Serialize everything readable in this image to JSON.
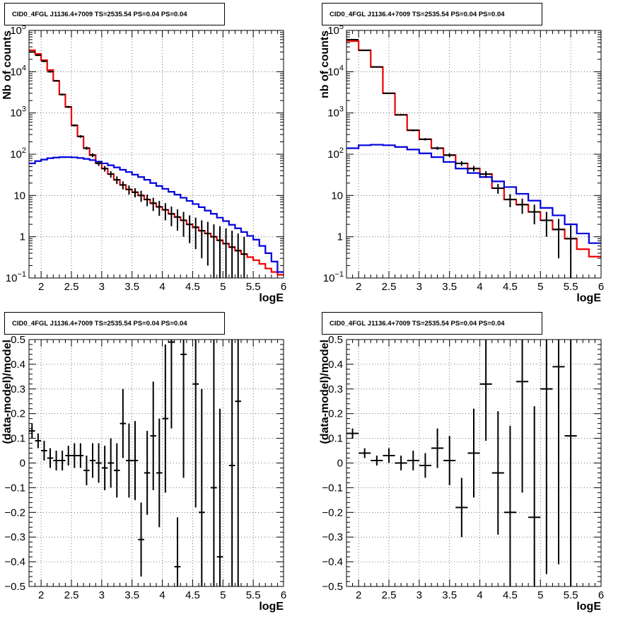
{
  "panel_titles": [
    "CID0_4FGL J1136.4+7009 TS=2535.54 PS=0.04 PS=0.04",
    "CID0_4FGL J1136.4+7009 TS=2535.54 PS=0.04 PS=0.04",
    "CID0_4FGL J1136.4+7009 TS=2535.54 PS=0.04 PS=0.04",
    "CID0_4FGL J1136.4+7009 TS=2535.54 PS=0.04 PS=0.04"
  ],
  "colors": {
    "total_model": "#ee0000",
    "component_model": "#0000dd",
    "data": "#000000",
    "grid": "#555555"
  },
  "chart_data": [
    {
      "type": "line",
      "xlabel": "logE",
      "ylabel": "Nb of counts",
      "xlim": [
        1.8,
        6.0
      ],
      "ylim": [
        0.1,
        100000
      ],
      "yscale": "log",
      "grid": true,
      "x_ticks": [
        "2",
        "2.5",
        "3",
        "3.5",
        "4",
        "4.5",
        "5",
        "5.5",
        "6"
      ],
      "y_ticks": [
        "10^-1",
        "1",
        "10",
        "10^2",
        "10^3",
        "10^4",
        "10^5"
      ],
      "bin_edges": [
        1.8,
        1.9,
        2.0,
        2.1,
        2.2,
        2.3,
        2.4,
        2.5,
        2.6,
        2.7,
        2.8,
        2.9,
        3.0,
        3.1,
        3.2,
        3.3,
        3.4,
        3.5,
        3.6,
        3.7,
        3.8,
        3.9,
        4.0,
        4.1,
        4.2,
        4.3,
        4.4,
        4.5,
        4.6,
        4.7,
        4.8,
        4.9,
        5.0,
        5.1,
        5.2,
        5.3,
        5.4,
        5.5,
        5.6,
        5.7,
        5.8,
        5.9,
        6.0
      ],
      "series": [
        {
          "values": [
            33000,
            27000,
            19000,
            11000,
            6000,
            2800,
            1400,
            500,
            270,
            140,
            95,
            60,
            45,
            33,
            24,
            18,
            14,
            12,
            10,
            8,
            6.5,
            5.3,
            4.5,
            3.6,
            3.0,
            2.5,
            2.0,
            1.7,
            1.4,
            1.2,
            1.0,
            0.82,
            0.68,
            0.56,
            0.46,
            0.38,
            0.32,
            0.27,
            0.22,
            0.17,
            0.14,
            0.12
          ]
        },
        {
          "values": [
            60,
            68,
            74,
            80,
            83,
            85,
            85,
            84,
            81,
            77,
            72,
            66,
            60,
            54,
            48,
            42,
            37,
            32,
            28,
            24,
            20,
            17,
            14.5,
            12.3,
            10.5,
            8.8,
            7.4,
            6.2,
            5.2,
            4.3,
            3.6,
            2.9,
            2.4,
            1.95,
            1.6,
            1.3,
            1.05,
            0.85,
            0.6,
            0.4,
            0.25,
            0.14
          ]
        }
      ],
      "points": [
        {
          "x": 1.85,
          "y": 30000,
          "el": 29000,
          "eh": 31000
        },
        {
          "x": 1.95,
          "y": 25000,
          "el": 24000,
          "eh": 26000
        },
        {
          "x": 2.05,
          "y": 18000,
          "el": 17000,
          "eh": 19000
        },
        {
          "x": 2.15,
          "y": 10000,
          "el": 9500,
          "eh": 10500
        },
        {
          "x": 2.25,
          "y": 6000,
          "el": 5700,
          "eh": 6300
        },
        {
          "x": 2.35,
          "y": 2800,
          "el": 2650,
          "eh": 2950
        },
        {
          "x": 2.45,
          "y": 1400,
          "el": 1320,
          "eh": 1480
        },
        {
          "x": 2.55,
          "y": 500,
          "el": 470,
          "eh": 530
        },
        {
          "x": 2.65,
          "y": 270,
          "el": 250,
          "eh": 290
        },
        {
          "x": 2.75,
          "y": 140,
          "el": 128,
          "eh": 152
        },
        {
          "x": 2.85,
          "y": 95,
          "el": 85,
          "eh": 105
        },
        {
          "x": 2.95,
          "y": 60,
          "el": 52,
          "eh": 68
        },
        {
          "x": 3.05,
          "y": 45,
          "el": 38,
          "eh": 52
        },
        {
          "x": 3.15,
          "y": 33,
          "el": 27,
          "eh": 39
        },
        {
          "x": 3.25,
          "y": 24,
          "el": 19,
          "eh": 29
        },
        {
          "x": 3.35,
          "y": 18,
          "el": 14,
          "eh": 22
        },
        {
          "x": 3.45,
          "y": 14,
          "el": 10.5,
          "eh": 17.5
        },
        {
          "x": 3.55,
          "y": 12,
          "el": 9,
          "eh": 15
        },
        {
          "x": 3.65,
          "y": 10,
          "el": 7,
          "eh": 13
        },
        {
          "x": 3.75,
          "y": 8,
          "el": 5.5,
          "eh": 10.5
        },
        {
          "x": 3.85,
          "y": 6.5,
          "el": 4.2,
          "eh": 8.8
        },
        {
          "x": 3.95,
          "y": 5.3,
          "el": 3.2,
          "eh": 7.4
        },
        {
          "x": 4.05,
          "y": 4.5,
          "el": 2.5,
          "eh": 6.5
        },
        {
          "x": 4.15,
          "y": 3.6,
          "el": 1.8,
          "eh": 5.4
        },
        {
          "x": 4.25,
          "y": 3.0,
          "el": 1.4,
          "eh": 4.6
        },
        {
          "x": 4.35,
          "y": 2.5,
          "el": 1.0,
          "eh": 4.0
        },
        {
          "x": 4.45,
          "y": 2.0,
          "el": 0.7,
          "eh": 3.3
        },
        {
          "x": 4.55,
          "y": 1.7,
          "el": 0.5,
          "eh": 2.9
        },
        {
          "x": 4.65,
          "y": 1.4,
          "el": 0.3,
          "eh": 2.5
        },
        {
          "x": 4.75,
          "y": 1.2,
          "el": 0.2,
          "eh": 2.3
        },
        {
          "x": 4.85,
          "y": 1.0,
          "el": 0.1,
          "eh": 2.0
        },
        {
          "x": 4.95,
          "y": 0.82,
          "el": 0.1,
          "eh": 1.8
        },
        {
          "x": 5.05,
          "y": 0.68,
          "el": 0.1,
          "eh": 1.6
        },
        {
          "x": 5.15,
          "y": 0.56,
          "el": 0.1,
          "eh": 1.4
        },
        {
          "x": 5.25,
          "y": 0.46,
          "el": 0.1,
          "eh": 1.2
        },
        {
          "x": 5.35,
          "y": 0.38,
          "el": 0.1,
          "eh": 1.0
        }
      ]
    },
    {
      "type": "line",
      "xlabel": "logE",
      "ylabel": "nb of counts",
      "xlim": [
        1.8,
        6.0
      ],
      "ylim": [
        0.1,
        100000
      ],
      "yscale": "log",
      "grid": true,
      "x_ticks": [
        "2",
        "2.5",
        "3",
        "3.5",
        "4",
        "4.5",
        "5",
        "5.5",
        "6"
      ],
      "y_ticks": [
        "10^-1",
        "1",
        "10",
        "10^2",
        "10^3",
        "10^4",
        "10^5"
      ],
      "bin_edges": [
        1.8,
        2.0,
        2.2,
        2.4,
        2.6,
        2.8,
        3.0,
        3.2,
        3.4,
        3.6,
        3.8,
        4.0,
        4.2,
        4.4,
        4.6,
        4.8,
        5.0,
        5.2,
        5.4,
        5.6,
        5.8,
        6.0
      ],
      "series": [
        {
          "values": [
            55000,
            33000,
            13000,
            3000,
            900,
            380,
            230,
            140,
            95,
            60,
            45,
            33,
            15,
            8,
            6,
            4,
            2.5,
            1.5,
            0.9,
            0.5,
            0.33
          ]
        },
        {
          "values": [
            140,
            165,
            170,
            165,
            150,
            130,
            105,
            85,
            65,
            45,
            35,
            28,
            22,
            16,
            11,
            7.5,
            5,
            3.3,
            2.0,
            1.2,
            0.7
          ]
        }
      ],
      "points": [
        {
          "x": 1.9,
          "y": 60000,
          "el": 58000,
          "eh": 62000
        },
        {
          "x": 2.1,
          "y": 33000,
          "el": 32000,
          "eh": 34000
        },
        {
          "x": 2.3,
          "y": 13000,
          "el": 12500,
          "eh": 13500
        },
        {
          "x": 2.5,
          "y": 3000,
          "el": 2900,
          "eh": 3100
        },
        {
          "x": 2.7,
          "y": 900,
          "el": 860,
          "eh": 940
        },
        {
          "x": 2.9,
          "y": 380,
          "el": 360,
          "eh": 400
        },
        {
          "x": 3.1,
          "y": 230,
          "el": 215,
          "eh": 245
        },
        {
          "x": 3.3,
          "y": 140,
          "el": 128,
          "eh": 152
        },
        {
          "x": 3.5,
          "y": 95,
          "el": 85,
          "eh": 105
        },
        {
          "x": 3.7,
          "y": 60,
          "el": 52,
          "eh": 68
        },
        {
          "x": 3.9,
          "y": 45,
          "el": 38,
          "eh": 52
        },
        {
          "x": 4.1,
          "y": 33,
          "el": 27,
          "eh": 39
        },
        {
          "x": 4.3,
          "y": 15,
          "el": 11,
          "eh": 19
        },
        {
          "x": 4.5,
          "y": 8,
          "el": 5.2,
          "eh": 10.8
        },
        {
          "x": 4.7,
          "y": 6,
          "el": 3.6,
          "eh": 8.4
        },
        {
          "x": 4.9,
          "y": 4,
          "el": 2.0,
          "eh": 6.0
        },
        {
          "x": 5.1,
          "y": 2.5,
          "el": 1.0,
          "eh": 4.0
        },
        {
          "x": 5.3,
          "y": 1.5,
          "el": 0.3,
          "eh": 2.7
        },
        {
          "x": 5.5,
          "y": 0.9,
          "el": 0.1,
          "eh": 1.9
        }
      ]
    },
    {
      "type": "scatter",
      "xlabel": "logE",
      "ylabel": "(data-model)/model",
      "xlim": [
        1.8,
        6.0
      ],
      "ylim": [
        -0.5,
        0.5
      ],
      "grid": true,
      "x_ticks": [
        "2",
        "2.5",
        "3",
        "3.5",
        "4",
        "4.5",
        "5",
        "5.5",
        "6"
      ],
      "y_ticks": [
        "-0.5",
        "-0.4",
        "-0.3",
        "-0.2",
        "-0.1",
        "0",
        "0.1",
        "0.2",
        "0.3",
        "0.4",
        "0.5"
      ],
      "bin_width": 0.1,
      "points": [
        {
          "x": 1.85,
          "y": 0.13,
          "e": 0.03
        },
        {
          "x": 1.95,
          "y": 0.09,
          "e": 0.03
        },
        {
          "x": 2.05,
          "y": 0.05,
          "e": 0.04
        },
        {
          "x": 2.15,
          "y": 0.02,
          "e": 0.04
        },
        {
          "x": 2.25,
          "y": 0.01,
          "e": 0.04
        },
        {
          "x": 2.35,
          "y": 0.01,
          "e": 0.04
        },
        {
          "x": 2.45,
          "y": 0.03,
          "e": 0.04
        },
        {
          "x": 2.55,
          "y": 0.03,
          "e": 0.05
        },
        {
          "x": 2.65,
          "y": 0.03,
          "e": 0.05
        },
        {
          "x": 2.75,
          "y": -0.03,
          "e": 0.06
        },
        {
          "x": 2.85,
          "y": 0.01,
          "e": 0.07
        },
        {
          "x": 2.95,
          "y": 0.0,
          "e": 0.08
        },
        {
          "x": 3.05,
          "y": -0.02,
          "e": 0.09
        },
        {
          "x": 3.15,
          "y": 0.0,
          "e": 0.1
        },
        {
          "x": 3.25,
          "y": -0.03,
          "e": 0.11
        },
        {
          "x": 3.35,
          "y": 0.16,
          "e": 0.14
        },
        {
          "x": 3.45,
          "y": 0.01,
          "e": 0.15
        },
        {
          "x": 3.55,
          "y": 0.01,
          "e": 0.16
        },
        {
          "x": 3.65,
          "y": -0.31,
          "e": 0.15
        },
        {
          "x": 3.75,
          "y": -0.04,
          "e": 0.17
        },
        {
          "x": 3.85,
          "y": 0.11,
          "e": 0.22
        },
        {
          "x": 3.95,
          "y": -0.04,
          "e": 0.22
        },
        {
          "x": 4.05,
          "y": 0.18,
          "e": 0.3
        },
        {
          "x": 4.15,
          "y": 0.49,
          "e": 0.35
        },
        {
          "x": 4.25,
          "y": -0.42,
          "e": 0.2
        },
        {
          "x": 4.35,
          "y": 0.44,
          "e": 0.5
        },
        {
          "x": 4.55,
          "y": 0.32,
          "e": 0.5
        },
        {
          "x": 4.65,
          "y": -0.2,
          "e": 0.5
        },
        {
          "x": 4.85,
          "y": -0.1,
          "e": 0.6
        },
        {
          "x": 4.95,
          "y": -0.38,
          "e": 0.6
        },
        {
          "x": 5.15,
          "y": -0.01,
          "e": 0.7
        },
        {
          "x": 5.25,
          "y": 0.25,
          "e": 0.8
        }
      ]
    },
    {
      "type": "scatter",
      "xlabel": "logE",
      "ylabel": "(data-model)/model",
      "xlim": [
        1.8,
        6.0
      ],
      "ylim": [
        -0.5,
        0.5
      ],
      "grid": true,
      "x_ticks": [
        "2",
        "2.5",
        "3",
        "3.5",
        "4",
        "4.5",
        "5",
        "5.5",
        "6"
      ],
      "y_ticks": [
        "-0.5",
        "-0.4",
        "-0.3",
        "-0.2",
        "-0.1",
        "0",
        "0.1",
        "0.2",
        "0.3",
        "0.4",
        "0.5"
      ],
      "bin_width": 0.2,
      "points": [
        {
          "x": 1.9,
          "y": 0.12,
          "e": 0.02
        },
        {
          "x": 2.1,
          "y": 0.04,
          "e": 0.02
        },
        {
          "x": 2.3,
          "y": 0.01,
          "e": 0.02
        },
        {
          "x": 2.5,
          "y": 0.03,
          "e": 0.03
        },
        {
          "x": 2.7,
          "y": 0.0,
          "e": 0.03
        },
        {
          "x": 2.9,
          "y": 0.01,
          "e": 0.04
        },
        {
          "x": 3.1,
          "y": -0.01,
          "e": 0.05
        },
        {
          "x": 3.3,
          "y": 0.06,
          "e": 0.08
        },
        {
          "x": 3.5,
          "y": 0.01,
          "e": 0.1
        },
        {
          "x": 3.7,
          "y": -0.18,
          "e": 0.12
        },
        {
          "x": 3.9,
          "y": 0.04,
          "e": 0.18
        },
        {
          "x": 4.1,
          "y": 0.32,
          "e": 0.23
        },
        {
          "x": 4.3,
          "y": -0.04,
          "e": 0.25
        },
        {
          "x": 4.5,
          "y": -0.2,
          "e": 0.35
        },
        {
          "x": 4.7,
          "y": 0.33,
          "e": 0.45
        },
        {
          "x": 4.9,
          "y": -0.22,
          "e": 0.45
        },
        {
          "x": 5.1,
          "y": 0.3,
          "e": 0.75
        },
        {
          "x": 5.3,
          "y": 0.39,
          "e": 0.8
        },
        {
          "x": 5.5,
          "y": 0.11,
          "e": 0.9
        }
      ]
    }
  ]
}
